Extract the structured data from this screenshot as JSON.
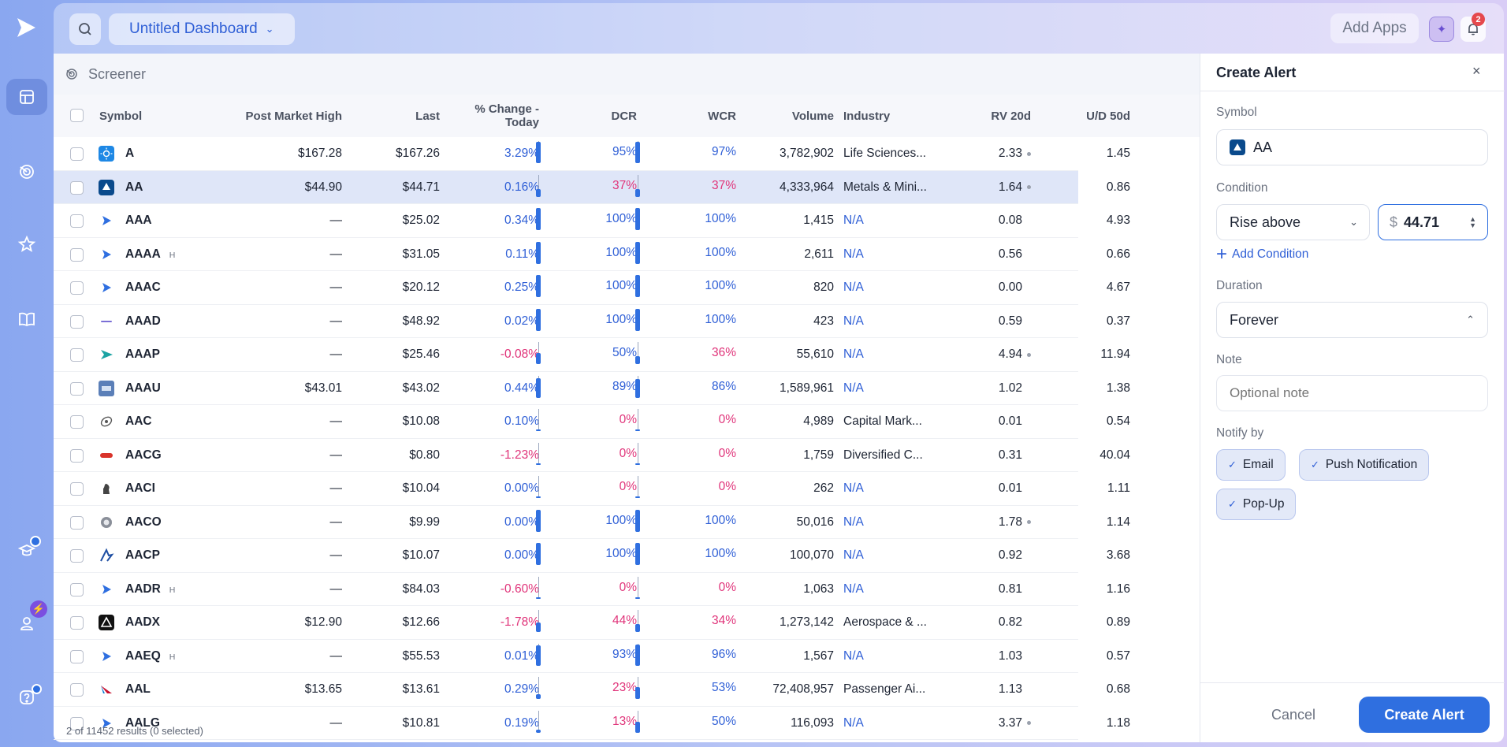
{
  "topbar": {
    "dashboard_title": "Untitled Dashboard",
    "add_apps_label": "Add Apps",
    "notification_count": "2"
  },
  "screener": {
    "title": "Screener"
  },
  "table": {
    "columns": {
      "symbol": "Symbol",
      "post_market_high": "Post Market High",
      "last": "Last",
      "pct_change": "% Change - Today",
      "dcr": "DCR",
      "wcr": "WCR",
      "volume": "Volume",
      "industry": "Industry",
      "rv20d": "RV 20d",
      "ud50d": "U/D 50d"
    },
    "rows": [
      {
        "symbol": "A",
        "h": "",
        "pmh": "$167.28",
        "last": "$167.26",
        "chg": "3.29%",
        "neg": false,
        "dcr": "95%",
        "dcrv": 0.95,
        "wcr": "97%",
        "wcrv": 0.97,
        "vol": "3,782,902",
        "ind": "Life Sciences...",
        "indna": false,
        "rv": "2.33",
        "rvdot": true,
        "ud": "1.45",
        "icon": "sun",
        "color": "#1e88e5"
      },
      {
        "symbol": "AA",
        "h": "",
        "pmh": "$44.90",
        "last": "$44.71",
        "chg": "0.16%",
        "neg": false,
        "dcr": "37%",
        "dcrv": 0.37,
        "wcr": "37%",
        "wcrv": 0.37,
        "vol": "4,333,964",
        "ind": "Metals & Mini...",
        "indna": false,
        "rv": "1.64",
        "rvdot": true,
        "ud": "0.86",
        "icon": "alcoa",
        "color": "#0a4a8c"
      },
      {
        "symbol": "AAA",
        "h": "",
        "pmh": "—",
        "last": "$25.02",
        "chg": "0.34%",
        "neg": false,
        "dcr": "100%",
        "dcrv": 1,
        "wcr": "100%",
        "wcrv": 1,
        "vol": "1,415",
        "ind": "N/A",
        "indna": true,
        "rv": "0.08",
        "rvdot": false,
        "ud": "4.93",
        "icon": "play",
        "color": "#2f6fe0"
      },
      {
        "symbol": "AAAA",
        "h": "H",
        "pmh": "—",
        "last": "$31.05",
        "chg": "0.11%",
        "neg": false,
        "dcr": "100%",
        "dcrv": 1,
        "wcr": "100%",
        "wcrv": 1,
        "vol": "2,611",
        "ind": "N/A",
        "indna": true,
        "rv": "0.56",
        "rvdot": false,
        "ud": "0.66",
        "icon": "play",
        "color": "#2f6fe0"
      },
      {
        "symbol": "AAAC",
        "h": "",
        "pmh": "—",
        "last": "$20.12",
        "chg": "0.25%",
        "neg": false,
        "dcr": "100%",
        "dcrv": 1,
        "wcr": "100%",
        "wcrv": 1,
        "vol": "820",
        "ind": "N/A",
        "indna": true,
        "rv": "0.00",
        "rvdot": false,
        "ud": "4.67",
        "icon": "play",
        "color": "#2f6fe0"
      },
      {
        "symbol": "AAAD",
        "h": "",
        "pmh": "—",
        "last": "$48.92",
        "chg": "0.02%",
        "neg": false,
        "dcr": "100%",
        "dcrv": 1,
        "wcr": "100%",
        "wcrv": 1,
        "vol": "423",
        "ind": "N/A",
        "indna": true,
        "rv": "0.59",
        "rvdot": false,
        "ud": "0.37",
        "icon": "dash",
        "color": "#7b6fd6"
      },
      {
        "symbol": "AAAP",
        "h": "",
        "pmh": "—",
        "last": "$25.46",
        "chg": "-0.08%",
        "neg": true,
        "dcr": "50%",
        "dcrv": 0.5,
        "wcr": "36%",
        "wcrv": 0.36,
        "vol": "55,610",
        "ind": "N/A",
        "indna": true,
        "rv": "4.94",
        "rvdot": true,
        "ud": "11.94",
        "icon": "arrow",
        "color": "#1aa3a3"
      },
      {
        "symbol": "AAAU",
        "h": "",
        "pmh": "$43.01",
        "last": "$43.02",
        "chg": "0.44%",
        "neg": false,
        "dcr": "89%",
        "dcrv": 0.89,
        "wcr": "86%",
        "wcrv": 0.86,
        "vol": "1,589,961",
        "ind": "N/A",
        "indna": true,
        "rv": "1.02",
        "rvdot": false,
        "ud": "1.38",
        "icon": "card",
        "color": "#5b7fb8"
      },
      {
        "symbol": "AAC",
        "h": "",
        "pmh": "—",
        "last": "$10.08",
        "chg": "0.10%",
        "neg": false,
        "dcr": "0%",
        "dcrv": 0,
        "wcr": "0%",
        "wcrv": 0,
        "vol": "4,989",
        "ind": "Capital Mark...",
        "indna": false,
        "rv": "0.01",
        "rvdot": false,
        "ud": "0.54",
        "icon": "orbit",
        "color": "#555"
      },
      {
        "symbol": "AACG",
        "h": "",
        "pmh": "—",
        "last": "$0.80",
        "chg": "-1.23%",
        "neg": true,
        "dcr": "0%",
        "dcrv": 0,
        "wcr": "0%",
        "wcrv": 0,
        "vol": "1,759",
        "ind": "Diversified C...",
        "indna": false,
        "rv": "0.31",
        "rvdot": false,
        "ud": "40.04",
        "icon": "red",
        "color": "#d9342b"
      },
      {
        "symbol": "AACI",
        "h": "",
        "pmh": "—",
        "last": "$10.04",
        "chg": "0.00%",
        "neg": false,
        "dcr": "0%",
        "dcrv": 0,
        "wcr": "0%",
        "wcrv": 0,
        "vol": "262",
        "ind": "N/A",
        "indna": true,
        "rv": "0.01",
        "rvdot": false,
        "ud": "1.11",
        "icon": "chess",
        "color": "#444"
      },
      {
        "symbol": "AACO",
        "h": "",
        "pmh": "—",
        "last": "$9.99",
        "chg": "0.00%",
        "neg": false,
        "dcr": "100%",
        "dcrv": 1,
        "wcr": "100%",
        "wcrv": 1,
        "vol": "50,016",
        "ind": "N/A",
        "indna": true,
        "rv": "1.78",
        "rvdot": true,
        "ud": "1.14",
        "icon": "coin",
        "color": "#8a8f99"
      },
      {
        "symbol": "AACP",
        "h": "",
        "pmh": "—",
        "last": "$10.07",
        "chg": "0.00%",
        "neg": false,
        "dcr": "100%",
        "dcrv": 1,
        "wcr": "100%",
        "wcrv": 1,
        "vol": "100,070",
        "ind": "N/A",
        "indna": true,
        "rv": "0.92",
        "rvdot": false,
        "ud": "3.68",
        "icon": "swoosh",
        "color": "#1f4fa3"
      },
      {
        "symbol": "AADR",
        "h": "H",
        "pmh": "—",
        "last": "$84.03",
        "chg": "-0.60%",
        "neg": true,
        "dcr": "0%",
        "dcrv": 0,
        "wcr": "0%",
        "wcrv": 0,
        "vol": "1,063",
        "ind": "N/A",
        "indna": true,
        "rv": "0.81",
        "rvdot": false,
        "ud": "1.16",
        "icon": "play",
        "color": "#2f6fe0"
      },
      {
        "symbol": "AADX",
        "h": "",
        "pmh": "$12.90",
        "last": "$12.66",
        "chg": "-1.78%",
        "neg": true,
        "dcr": "44%",
        "dcrv": 0.44,
        "wcr": "34%",
        "wcrv": 0.34,
        "vol": "1,273,142",
        "ind": "Aerospace & ...",
        "indna": false,
        "rv": "0.82",
        "rvdot": false,
        "ud": "0.89",
        "icon": "tri",
        "color": "#111"
      },
      {
        "symbol": "AAEQ",
        "h": "H",
        "pmh": "—",
        "last": "$55.53",
        "chg": "0.01%",
        "neg": false,
        "dcr": "93%",
        "dcrv": 0.93,
        "wcr": "96%",
        "wcrv": 0.96,
        "vol": "1,567",
        "ind": "N/A",
        "indna": true,
        "rv": "1.03",
        "rvdot": false,
        "ud": "0.57",
        "icon": "play",
        "color": "#2f6fe0"
      },
      {
        "symbol": "AAL",
        "h": "",
        "pmh": "$13.65",
        "last": "$13.61",
        "chg": "0.29%",
        "neg": false,
        "dcr": "23%",
        "dcrv": 0.23,
        "wcr": "53%",
        "wcrv": 0.53,
        "vol": "72,408,957",
        "ind": "Passenger Ai...",
        "indna": false,
        "rv": "1.13",
        "rvdot": false,
        "ud": "0.68",
        "icon": "aal",
        "color": "#c8102e"
      },
      {
        "symbol": "AALG",
        "h": "",
        "pmh": "—",
        "last": "$10.81",
        "chg": "0.19%",
        "neg": false,
        "dcr": "13%",
        "dcrv": 0.13,
        "wcr": "50%",
        "wcrv": 0.5,
        "vol": "116,093",
        "ind": "N/A",
        "indna": true,
        "rv": "3.37",
        "rvdot": true,
        "ud": "1.18",
        "icon": "play",
        "color": "#2f6fe0"
      }
    ],
    "footer": "2 of 11452 results (0 selected)"
  },
  "alert": {
    "title": "Create Alert",
    "symbol_label": "Symbol",
    "symbol_value": "AA",
    "condition_label": "Condition",
    "condition_value": "Rise above",
    "price_prefix": "$",
    "price_value": "44.71",
    "add_condition": "Add Condition",
    "duration_label": "Duration",
    "duration_value": "Forever",
    "note_label": "Note",
    "note_placeholder": "Optional note",
    "notify_label": "Notify by",
    "notify_email": "Email",
    "notify_push": "Push Notification",
    "notify_popup": "Pop-Up",
    "cancel": "Cancel",
    "create": "Create Alert"
  },
  "colors": {
    "accent": "#2f6fe0",
    "positive": "#2f5fd6",
    "negative": "#e0347a",
    "selected_row": "#dfe6f8"
  }
}
